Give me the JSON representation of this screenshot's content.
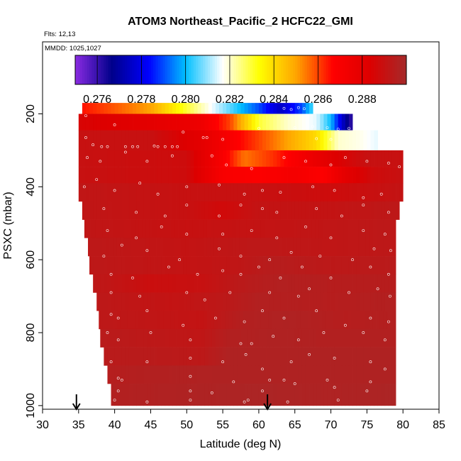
{
  "chart_data": {
    "type": "heatmap",
    "title": "ATOM3 Northeast_Pacific_2 HCFC22_GMI",
    "flights_note": "Flts: 12,13",
    "date_note": "MMDD: 1025,1027",
    "xlabel": "Latitude (deg N)",
    "ylabel": "PSXC (mbar)",
    "xlim": [
      30,
      85
    ],
    "ylim": [
      1000,
      0
    ],
    "x_ticks": [
      "30",
      "35",
      "40",
      "45",
      "50",
      "55",
      "60",
      "65",
      "70",
      "75",
      "80",
      "85"
    ],
    "y_ticks": [
      "200",
      "400",
      "600",
      "800",
      "1000"
    ],
    "colorbar": {
      "range": [
        0.275,
        0.29
      ],
      "tick_labels": [
        "0.276",
        "0.278",
        "0.280",
        "0.282",
        "0.284",
        "0.286",
        "0.288"
      ],
      "colors": [
        "#8a2be2",
        "#00008b",
        "#0000ff",
        "#00bfff",
        "#ffffff",
        "#ffff00",
        "#ffa500",
        "#ff0000",
        "#dd0000",
        "#a52a2a"
      ]
    },
    "arrows_lat": [
      34.7,
      61.2
    ],
    "bands": [
      {
        "p_top": 170,
        "p_bot": 200,
        "lat_min": 35.5,
        "lat_max": 67.5,
        "stops": [
          [
            35.5,
            0.2865
          ],
          [
            40,
            0.2858
          ],
          [
            45,
            0.285
          ],
          [
            50,
            0.283
          ],
          [
            55,
            0.281
          ],
          [
            60,
            0.279
          ],
          [
            63,
            0.2775
          ],
          [
            66,
            0.279
          ],
          [
            67.5,
            0.2805
          ]
        ]
      },
      {
        "p_top": 200,
        "p_bot": 245,
        "lat_min": 35,
        "lat_max": 73,
        "stops": [
          [
            35,
            0.2885
          ],
          [
            45,
            0.288
          ],
          [
            52,
            0.2875
          ],
          [
            56,
            0.286
          ],
          [
            60,
            0.283
          ],
          [
            64,
            0.282
          ],
          [
            68,
            0.2815
          ],
          [
            70,
            0.28
          ],
          [
            72,
            0.277
          ],
          [
            73,
            0.276
          ]
        ]
      },
      {
        "p_top": 245,
        "p_bot": 300,
        "lat_min": 35,
        "lat_max": 76.5,
        "stops": [
          [
            35,
            0.289
          ],
          [
            45,
            0.289
          ],
          [
            52,
            0.288
          ],
          [
            56,
            0.287
          ],
          [
            60,
            0.286
          ],
          [
            64,
            0.285
          ],
          [
            68,
            0.284
          ],
          [
            71,
            0.282
          ],
          [
            74,
            0.2818
          ],
          [
            76.5,
            0.2815
          ]
        ]
      },
      {
        "p_top": 300,
        "p_bot": 345,
        "lat_min": 35,
        "lat_max": 80,
        "stops": [
          [
            35,
            0.289
          ],
          [
            50,
            0.2888
          ],
          [
            55,
            0.287
          ],
          [
            58,
            0.2855
          ],
          [
            62,
            0.2862
          ],
          [
            66,
            0.2872
          ],
          [
            70,
            0.2882
          ],
          [
            75,
            0.289
          ],
          [
            80,
            0.289
          ]
        ]
      },
      {
        "p_top": 345,
        "p_bot": 390,
        "lat_min": 35,
        "lat_max": 80,
        "stops": [
          [
            35,
            0.289
          ],
          [
            50,
            0.2888
          ],
          [
            55,
            0.287
          ],
          [
            60,
            0.2868
          ],
          [
            65,
            0.2872
          ],
          [
            69,
            0.2868
          ],
          [
            72,
            0.288
          ],
          [
            76,
            0.2888
          ],
          [
            80,
            0.289
          ]
        ]
      },
      {
        "p_top": 390,
        "p_bot": 440,
        "lat_min": 35,
        "lat_max": 80,
        "stops": [
          [
            35,
            0.2892
          ],
          [
            50,
            0.289
          ],
          [
            60,
            0.289
          ],
          [
            70,
            0.2888
          ],
          [
            80,
            0.2891
          ]
        ]
      },
      {
        "p_top": 440,
        "p_bot": 490,
        "lat_min": 35.5,
        "lat_max": 79.5,
        "stops": [
          [
            35.5,
            0.2892
          ],
          [
            50,
            0.289
          ],
          [
            55,
            0.2887
          ],
          [
            60,
            0.2891
          ],
          [
            70,
            0.2891
          ],
          [
            79.5,
            0.2893
          ]
        ]
      },
      {
        "p_top": 490,
        "p_bot": 540,
        "lat_min": 35.8,
        "lat_max": 79,
        "stops": [
          [
            35.8,
            0.2892
          ],
          [
            50,
            0.289
          ],
          [
            60,
            0.2891
          ],
          [
            70,
            0.2892
          ],
          [
            79,
            0.2893
          ]
        ]
      },
      {
        "p_top": 540,
        "p_bot": 590,
        "lat_min": 36.3,
        "lat_max": 79,
        "stops": [
          [
            36.3,
            0.2893
          ],
          [
            50,
            0.2891
          ],
          [
            60,
            0.2893
          ],
          [
            70,
            0.2892
          ],
          [
            79,
            0.2893
          ]
        ]
      },
      {
        "p_top": 590,
        "p_bot": 640,
        "lat_min": 36.5,
        "lat_max": 79,
        "stops": [
          [
            36.5,
            0.2893
          ],
          [
            50,
            0.2891
          ],
          [
            57,
            0.2892
          ],
          [
            62,
            0.2895
          ],
          [
            70,
            0.2893
          ],
          [
            79,
            0.2894
          ]
        ]
      },
      {
        "p_top": 640,
        "p_bot": 690,
        "lat_min": 37,
        "lat_max": 79,
        "stops": [
          [
            37,
            0.2893
          ],
          [
            45,
            0.2889
          ],
          [
            52,
            0.289
          ],
          [
            58,
            0.2894
          ],
          [
            63,
            0.2896
          ],
          [
            70,
            0.2895
          ],
          [
            79,
            0.2895
          ]
        ]
      },
      {
        "p_top": 690,
        "p_bot": 740,
        "lat_min": 37.5,
        "lat_max": 79,
        "stops": [
          [
            37.5,
            0.2893
          ],
          [
            48,
            0.2891
          ],
          [
            55,
            0.2893
          ],
          [
            60,
            0.2896
          ],
          [
            70,
            0.2895
          ],
          [
            79,
            0.2896
          ]
        ]
      },
      {
        "p_top": 740,
        "p_bot": 790,
        "lat_min": 37.8,
        "lat_max": 79,
        "stops": [
          [
            37.8,
            0.2893
          ],
          [
            45,
            0.2892
          ],
          [
            52,
            0.2891
          ],
          [
            58,
            0.2896
          ],
          [
            64,
            0.2897
          ],
          [
            72,
            0.2895
          ],
          [
            79,
            0.2896
          ]
        ]
      },
      {
        "p_top": 790,
        "p_bot": 840,
        "lat_min": 38,
        "lat_max": 79,
        "stops": [
          [
            38,
            0.2894
          ],
          [
            45,
            0.2893
          ],
          [
            52,
            0.2892
          ],
          [
            56,
            0.2896
          ],
          [
            62,
            0.2897
          ],
          [
            70,
            0.2896
          ],
          [
            79,
            0.2896
          ]
        ]
      },
      {
        "p_top": 840,
        "p_bot": 890,
        "lat_min": 38.5,
        "lat_max": 79,
        "stops": [
          [
            38.5,
            0.2894
          ],
          [
            45,
            0.2894
          ],
          [
            52,
            0.2893
          ],
          [
            56,
            0.2897
          ],
          [
            62,
            0.2897
          ],
          [
            70,
            0.2897
          ],
          [
            79,
            0.2897
          ]
        ]
      },
      {
        "p_top": 890,
        "p_bot": 940,
        "lat_min": 39,
        "lat_max": 79,
        "stops": [
          [
            39,
            0.2895
          ],
          [
            45,
            0.2896
          ],
          [
            55,
            0.2897
          ],
          [
            62,
            0.2897
          ],
          [
            70,
            0.2897
          ],
          [
            79,
            0.2897
          ]
        ]
      },
      {
        "p_top": 940,
        "p_bot": 1000,
        "lat_min": 39.5,
        "lat_max": 79,
        "stops": [
          [
            39.5,
            0.2896
          ],
          [
            50,
            0.2897
          ],
          [
            60,
            0.2898
          ],
          [
            70,
            0.2897
          ],
          [
            79,
            0.2898
          ]
        ]
      }
    ],
    "points": [
      [
        63.5,
        185
      ],
      [
        64.5,
        188
      ],
      [
        65.5,
        183
      ],
      [
        66.3,
        186
      ],
      [
        36,
        205
      ],
      [
        40,
        230
      ],
      [
        49.5,
        250
      ],
      [
        60,
        240
      ],
      [
        65,
        238
      ],
      [
        67.5,
        235
      ],
      [
        69.5,
        238
      ],
      [
        71,
        242
      ],
      [
        72.5,
        240
      ],
      [
        36,
        265
      ],
      [
        37,
        285
      ],
      [
        38.2,
        290
      ],
      [
        39,
        290
      ],
      [
        41.5,
        290
      ],
      [
        42.5,
        290
      ],
      [
        43.2,
        290
      ],
      [
        45.5,
        288
      ],
      [
        46,
        290
      ],
      [
        47,
        290
      ],
      [
        48,
        290
      ],
      [
        48.7,
        290
      ],
      [
        52.3,
        265
      ],
      [
        52.8,
        265
      ],
      [
        55,
        270
      ],
      [
        68,
        268
      ],
      [
        70,
        270
      ],
      [
        36.2,
        320
      ],
      [
        38,
        330
      ],
      [
        41.5,
        305
      ],
      [
        44.5,
        330
      ],
      [
        48,
        315
      ],
      [
        53.5,
        315
      ],
      [
        55.5,
        340
      ],
      [
        59,
        350
      ],
      [
        63.5,
        320
      ],
      [
        66.5,
        330
      ],
      [
        70,
        340
      ],
      [
        72,
        320
      ],
      [
        75,
        330
      ],
      [
        78,
        335
      ],
      [
        79.5,
        345
      ],
      [
        35.8,
        400
      ],
      [
        37.5,
        380
      ],
      [
        40,
        410
      ],
      [
        43.5,
        390
      ],
      [
        46,
        420
      ],
      [
        50,
        400
      ],
      [
        54.5,
        395
      ],
      [
        58,
        420
      ],
      [
        60.5,
        410
      ],
      [
        63,
        415
      ],
      [
        67.5,
        400
      ],
      [
        70.5,
        410
      ],
      [
        74.5,
        430
      ],
      [
        77,
        420
      ],
      [
        38.5,
        460
      ],
      [
        43,
        470
      ],
      [
        47,
        480
      ],
      [
        50,
        450
      ],
      [
        54.5,
        480
      ],
      [
        57.5,
        450
      ],
      [
        60.5,
        460
      ],
      [
        62.5,
        470
      ],
      [
        68,
        460
      ],
      [
        71.5,
        480
      ],
      [
        74.5,
        450
      ],
      [
        78,
        470
      ],
      [
        39,
        520
      ],
      [
        43,
        540
      ],
      [
        46.5,
        510
      ],
      [
        50,
        530
      ],
      [
        55,
        530
      ],
      [
        59,
        520
      ],
      [
        62.5,
        540
      ],
      [
        66.5,
        510
      ],
      [
        70,
        540
      ],
      [
        74.5,
        520
      ],
      [
        77.5,
        530
      ],
      [
        38.5,
        590
      ],
      [
        41,
        560
      ],
      [
        44.5,
        575
      ],
      [
        49,
        600
      ],
      [
        54.5,
        570
      ],
      [
        57.5,
        590
      ],
      [
        61.5,
        600
      ],
      [
        64.5,
        580
      ],
      [
        68.5,
        590
      ],
      [
        73,
        600
      ],
      [
        76,
        570
      ],
      [
        78.3,
        575
      ],
      [
        39.5,
        640
      ],
      [
        42.5,
        650
      ],
      [
        47.5,
        620
      ],
      [
        51.5,
        640
      ],
      [
        55,
        630
      ],
      [
        57.5,
        640
      ],
      [
        60,
        620
      ],
      [
        63,
        650
      ],
      [
        66,
        620
      ],
      [
        70,
        650
      ],
      [
        75.5,
        620
      ],
      [
        78,
        640
      ],
      [
        39.5,
        690
      ],
      [
        43.5,
        700
      ],
      [
        50,
        690
      ],
      [
        52.5,
        710
      ],
      [
        56,
        690
      ],
      [
        61.5,
        690
      ],
      [
        65.5,
        700
      ],
      [
        67,
        680
      ],
      [
        72.5,
        690
      ],
      [
        76.5,
        680
      ],
      [
        78.2,
        700
      ],
      [
        39.5,
        750
      ],
      [
        40.5,
        760
      ],
      [
        44.5,
        740
      ],
      [
        49.5,
        780
      ],
      [
        54,
        760
      ],
      [
        58,
        770
      ],
      [
        60.5,
        740
      ],
      [
        63.5,
        760
      ],
      [
        68,
        740
      ],
      [
        72,
        780
      ],
      [
        75.5,
        760
      ],
      [
        78,
        770
      ],
      [
        39,
        800
      ],
      [
        40.5,
        820
      ],
      [
        45,
        800
      ],
      [
        50.5,
        820
      ],
      [
        57.5,
        830
      ],
      [
        59,
        830
      ],
      [
        62,
        810
      ],
      [
        65.5,
        820
      ],
      [
        69,
        800
      ],
      [
        74.5,
        800
      ],
      [
        77.5,
        820
      ],
      [
        39.5,
        880
      ],
      [
        44.5,
        880
      ],
      [
        50.5,
        870
      ],
      [
        55,
        880
      ],
      [
        58.2,
        860
      ],
      [
        60.5,
        900
      ],
      [
        64.5,
        880
      ],
      [
        67,
        860
      ],
      [
        70.5,
        870
      ],
      [
        75.5,
        880
      ],
      [
        77.5,
        900
      ],
      [
        40.5,
        925
      ],
      [
        41,
        930
      ],
      [
        50.5,
        920
      ],
      [
        56.5,
        935
      ],
      [
        61.5,
        930
      ],
      [
        63.5,
        930
      ],
      [
        69.5,
        930
      ],
      [
        75.5,
        935
      ],
      [
        40.5,
        960
      ],
      [
        50.5,
        960
      ],
      [
        53.5,
        965
      ],
      [
        60.5,
        960
      ],
      [
        65,
        940
      ],
      [
        70.5,
        950
      ],
      [
        75,
        960
      ],
      [
        40,
        985
      ],
      [
        44.5,
        990
      ],
      [
        50.5,
        985
      ],
      [
        58,
        990
      ],
      [
        58.5,
        985
      ],
      [
        64,
        990
      ],
      [
        71,
        985
      ]
    ]
  }
}
